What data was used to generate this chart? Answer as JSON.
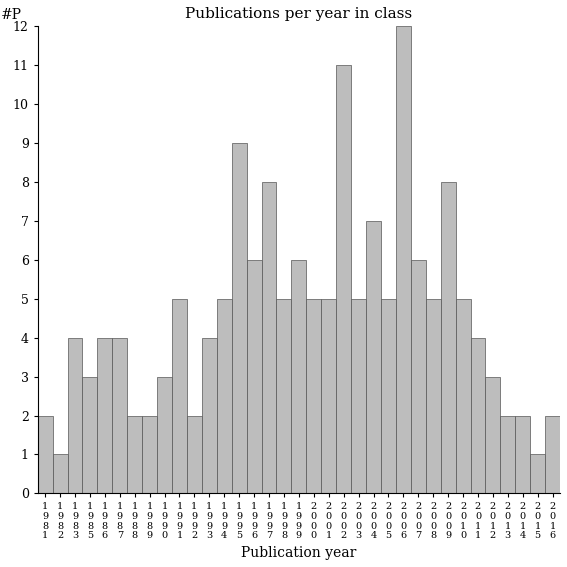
{
  "title": "Publications per year in class",
  "xlabel": "Publication year",
  "ylabel": "#P",
  "years": [
    1981,
    1982,
    1983,
    1985,
    1986,
    1987,
    1988,
    1989,
    1990,
    1991,
    1992,
    1993,
    1994,
    1995,
    1996,
    1997,
    1998,
    1999,
    2000,
    2001,
    2002,
    2003,
    2004,
    2005,
    2006,
    2007,
    2008,
    2009,
    2010,
    2011,
    2012,
    2013,
    2014,
    2015,
    2016
  ],
  "values": [
    2,
    1,
    4,
    3,
    4,
    4,
    2,
    2,
    3,
    5,
    2,
    4,
    5,
    9,
    6,
    8,
    5,
    6,
    5,
    5,
    11,
    5,
    7,
    5,
    12,
    6,
    5,
    8,
    5,
    4,
    3,
    2,
    2,
    1,
    2
  ],
  "bar_color": "#bdbdbd",
  "bar_edgecolor": "#555555",
  "ylim": [
    0,
    12
  ],
  "yticks": [
    0,
    1,
    2,
    3,
    4,
    5,
    6,
    7,
    8,
    9,
    10,
    11,
    12
  ],
  "figsize": [
    5.67,
    5.67
  ],
  "dpi": 100
}
